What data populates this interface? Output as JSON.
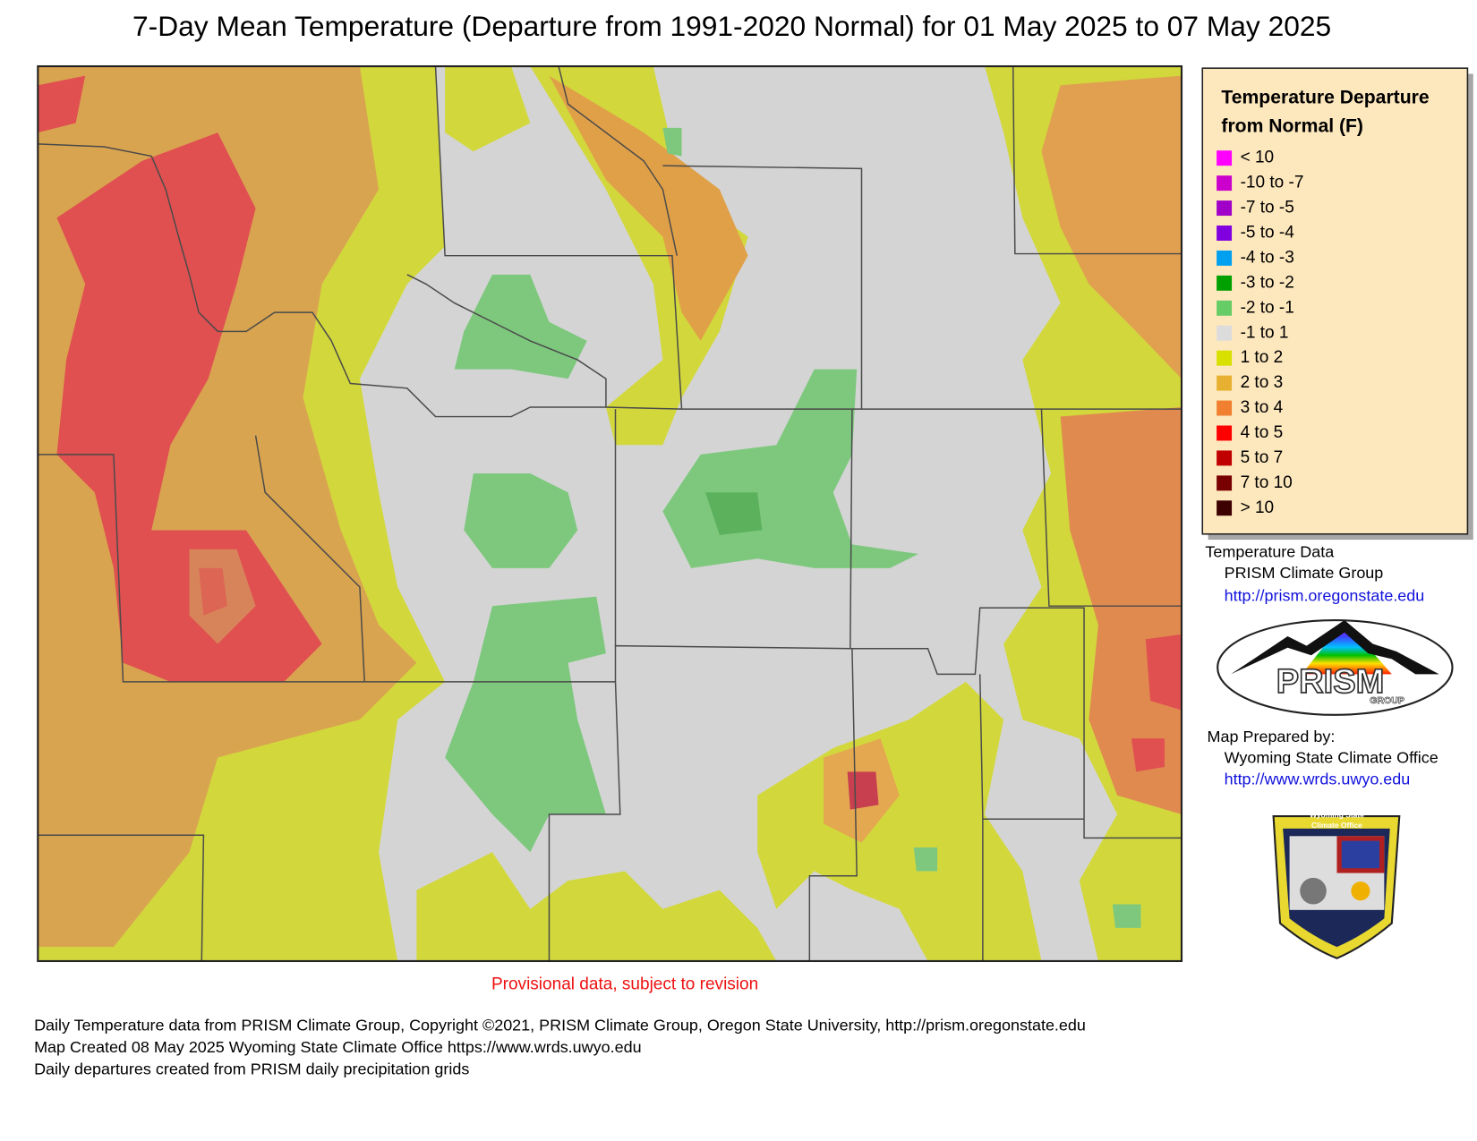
{
  "title": "7-Day Mean Temperature (Departure from 1991-2020 Normal) for 01 May 2025 to 07 May 2025",
  "map": {
    "note": "Provisional data, subject to revision"
  },
  "legend": {
    "title": [
      "Temperature Departure",
      "from Normal (F)"
    ],
    "items": [
      {
        "label": "< 10",
        "color": "#ff00ff"
      },
      {
        "label": "-10 to -7",
        "color": "#cc00cc"
      },
      {
        "label": "-7 to -5",
        "color": "#a000c8"
      },
      {
        "label": "-5 to -4",
        "color": "#8000e0"
      },
      {
        "label": "-4 to -3",
        "color": "#00a0f0"
      },
      {
        "label": "-3 to -2",
        "color": "#00a000"
      },
      {
        "label": "-2 to -1",
        "color": "#66cc66"
      },
      {
        "label": "-1 to 1",
        "color": "#dcdcdc"
      },
      {
        "label": "1 to 2",
        "color": "#d8e000"
      },
      {
        "label": "2 to 3",
        "color": "#e8b030"
      },
      {
        "label": "3 to 4",
        "color": "#f08030"
      },
      {
        "label": "4 to 5",
        "color": "#ff0000"
      },
      {
        "label": "5 to 7",
        "color": "#c00000"
      },
      {
        "label": "7 to 10",
        "color": "#780000"
      },
      {
        "label": "> 10",
        "color": "#3c0000"
      }
    ]
  },
  "credits": {
    "data_heading": "Temperature Data",
    "data_source": "PRISM Climate Group",
    "data_url": "http://prism.oregonstate.edu",
    "prepared_heading": "Map Prepared by:",
    "prepared_by": "Wyoming State Climate Office",
    "prepared_url": "http://www.wrds.uwyo.edu"
  },
  "logos": {
    "prism": {
      "text": "PRISM",
      "subtext": "GROUP"
    },
    "wsco": {
      "lines": [
        "Wyoming State",
        "Climate Office"
      ]
    }
  },
  "footer": {
    "lines": [
      "Daily Temperature data from PRISM Climate Group, Copyright ©2021, PRISM Climate Group, Oregon State University, http://prism.oregonstate.edu",
      "Map Created 08 May 2025 Wyoming State Climate Office https://www.wrds.uwyo.edu",
      "Daily departures created from PRISM daily precipitation grids"
    ]
  }
}
